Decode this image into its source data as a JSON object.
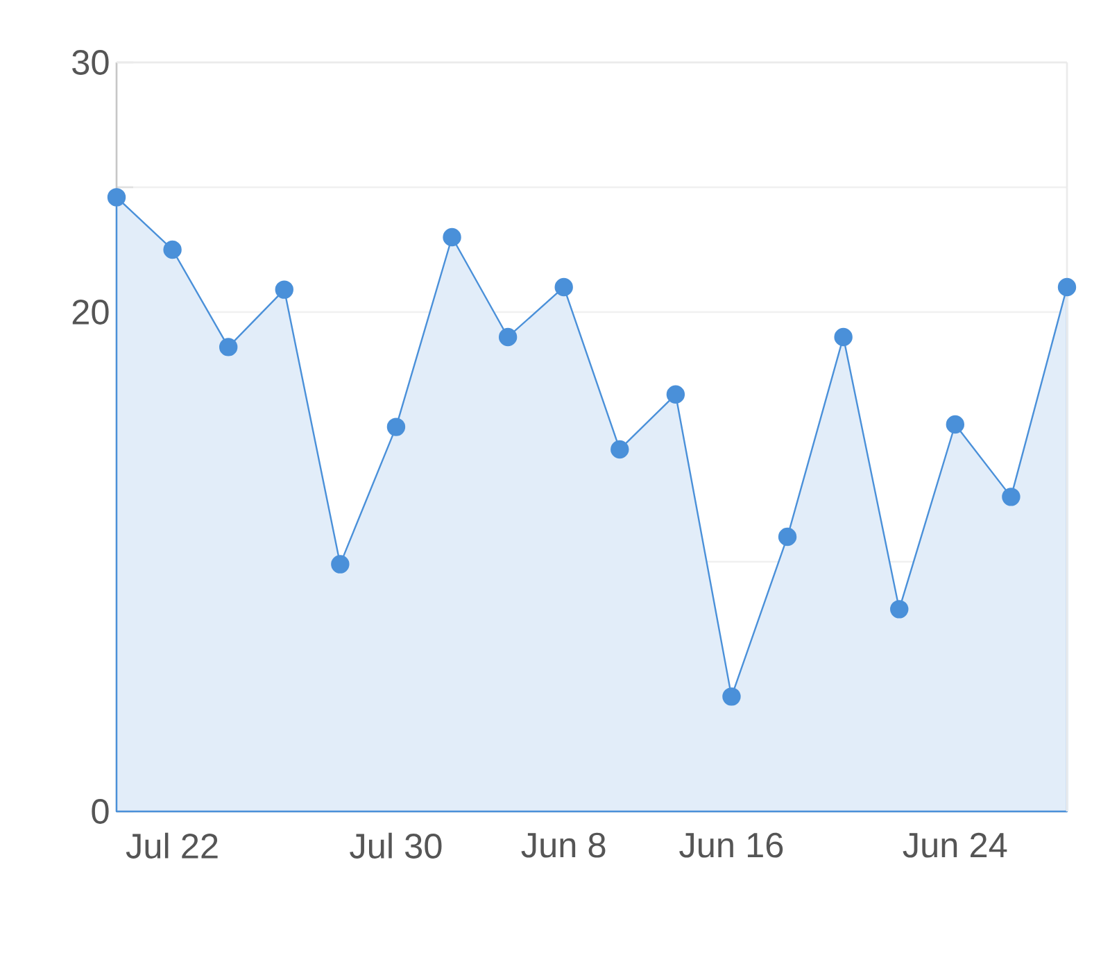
{
  "chart_data": {
    "type": "area",
    "categories": [
      null,
      "Jul 22",
      null,
      null,
      null,
      "Jul 30",
      null,
      null,
      "Jun 8",
      null,
      null,
      "Jun 16",
      null,
      null,
      null,
      "Jun 24",
      null,
      null
    ],
    "values": [
      24.6,
      22.5,
      18.6,
      20.9,
      9.9,
      15.4,
      23.0,
      19.0,
      21.0,
      14.5,
      16.7,
      4.6,
      11.0,
      19.0,
      8.1,
      15.5,
      12.6,
      21.0
    ],
    "color": "#4a90d9",
    "ylim": [
      0,
      30
    ],
    "yticks": [
      0,
      {
        "value": 10,
        "label": null
      },
      20,
      {
        "value": 25,
        "label": null
      },
      30
    ],
    "grid": "y",
    "marker": "circle"
  }
}
